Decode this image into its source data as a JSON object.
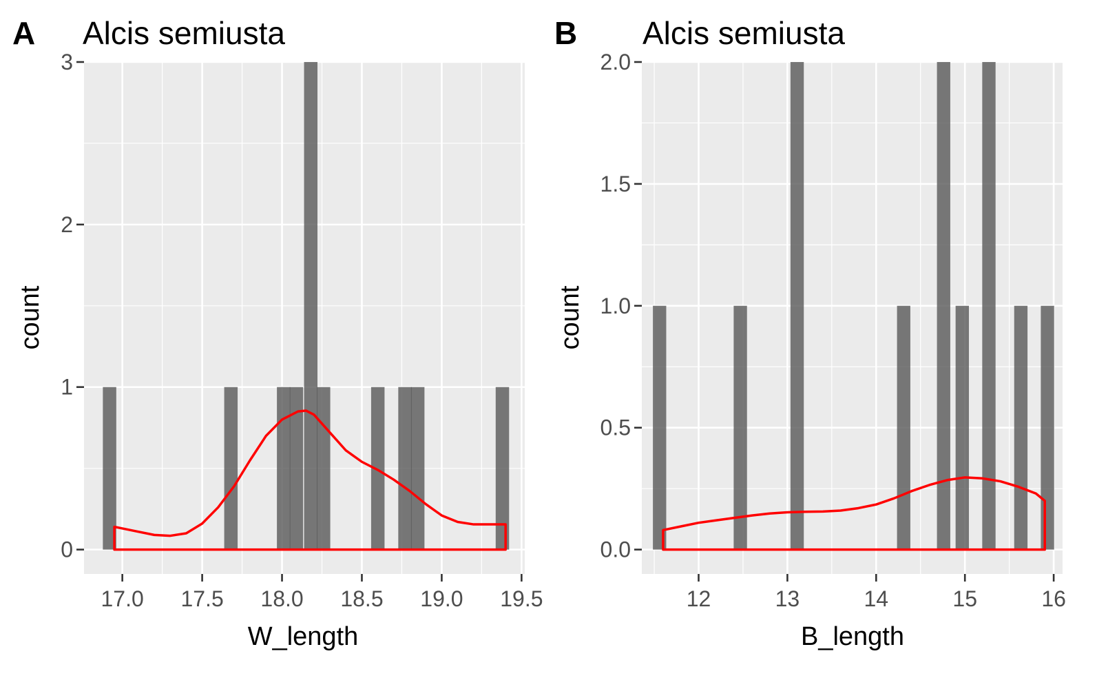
{
  "colors": {
    "panel_background": "#ebebeb",
    "grid": "#ffffff",
    "bar": "#595959",
    "density": "#ff0000",
    "tick_text": "#4d4d4d"
  },
  "chart_data": [
    {
      "type": "bar",
      "tag": "A",
      "title": "Alcis semiusta",
      "xlabel": "W_length",
      "ylabel": "count",
      "grid": true,
      "xlim": [
        16.76,
        19.52
      ],
      "ylim": [
        -0.15,
        3.0
      ],
      "x_ticks": [
        "17.0",
        "17.5",
        "18.0",
        "18.5",
        "19.0",
        "19.5"
      ],
      "x_tick_values": [
        17.0,
        17.5,
        18.0,
        18.5,
        19.0,
        19.5
      ],
      "y_ticks": [
        "0",
        "1",
        "2",
        "3"
      ],
      "y_tick_values": [
        0,
        1,
        2,
        3
      ],
      "bin_width": 0.084,
      "bars": [
        {
          "x": 16.92,
          "count": 1
        },
        {
          "x": 17.68,
          "count": 1
        },
        {
          "x": 18.01,
          "count": 1
        },
        {
          "x": 18.09,
          "count": 1
        },
        {
          "x": 18.18,
          "count": 3
        },
        {
          "x": 18.26,
          "count": 1
        },
        {
          "x": 18.6,
          "count": 1
        },
        {
          "x": 18.77,
          "count": 1
        },
        {
          "x": 18.85,
          "count": 1
        },
        {
          "x": 19.38,
          "count": 1
        }
      ],
      "density": {
        "x": [
          16.95,
          17.1,
          17.2,
          17.3,
          17.4,
          17.5,
          17.6,
          17.7,
          17.8,
          17.9,
          18.0,
          18.1,
          18.15,
          18.2,
          18.3,
          18.4,
          18.5,
          18.6,
          18.7,
          18.8,
          18.9,
          19.0,
          19.1,
          19.2,
          19.3,
          19.4
        ],
        "y": [
          0.14,
          0.11,
          0.09,
          0.085,
          0.1,
          0.16,
          0.26,
          0.39,
          0.55,
          0.7,
          0.8,
          0.85,
          0.855,
          0.83,
          0.72,
          0.61,
          0.54,
          0.49,
          0.43,
          0.36,
          0.28,
          0.21,
          0.17,
          0.155,
          0.155,
          0.155
        ]
      }
    },
    {
      "type": "bar",
      "tag": "B",
      "title": "Alcis semiusta",
      "xlabel": "B_length",
      "ylabel": "count",
      "grid": true,
      "xlim": [
        11.36,
        16.1
      ],
      "ylim": [
        -0.1,
        2.0
      ],
      "x_ticks": [
        "12",
        "13",
        "14",
        "15",
        "16"
      ],
      "x_tick_values": [
        12,
        13,
        14,
        15,
        16
      ],
      "y_ticks": [
        "0.0",
        "0.5",
        "1.0",
        "1.5",
        "2.0"
      ],
      "y_tick_values": [
        0,
        0.5,
        1.0,
        1.5,
        2.0
      ],
      "bin_width": 0.15,
      "bars": [
        {
          "x": 11.56,
          "count": 1
        },
        {
          "x": 12.47,
          "count": 1
        },
        {
          "x": 13.11,
          "count": 2
        },
        {
          "x": 14.31,
          "count": 1
        },
        {
          "x": 14.76,
          "count": 2
        },
        {
          "x": 14.97,
          "count": 1
        },
        {
          "x": 15.27,
          "count": 2
        },
        {
          "x": 15.63,
          "count": 1
        },
        {
          "x": 15.93,
          "count": 1
        }
      ],
      "density": {
        "x": [
          11.6,
          11.8,
          12.0,
          12.2,
          12.4,
          12.6,
          12.8,
          13.0,
          13.2,
          13.4,
          13.6,
          13.8,
          14.0,
          14.2,
          14.4,
          14.6,
          14.8,
          15.0,
          15.2,
          15.4,
          15.6,
          15.8,
          15.9
        ],
        "y": [
          0.08,
          0.095,
          0.11,
          0.12,
          0.13,
          0.14,
          0.148,
          0.153,
          0.155,
          0.156,
          0.16,
          0.17,
          0.185,
          0.21,
          0.24,
          0.265,
          0.285,
          0.296,
          0.292,
          0.28,
          0.258,
          0.23,
          0.2
        ]
      }
    }
  ]
}
